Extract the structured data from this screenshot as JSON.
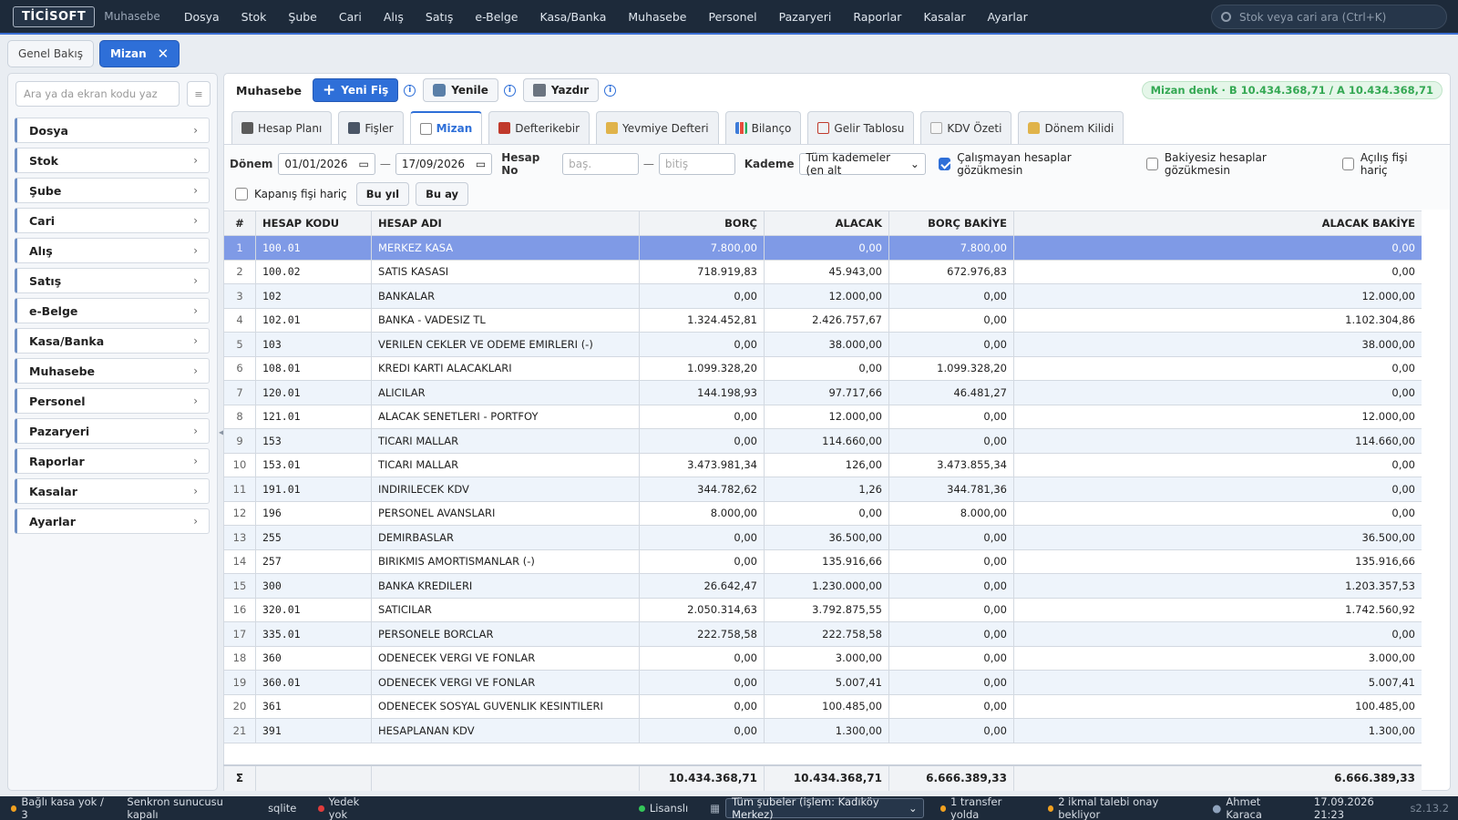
{
  "app": {
    "logo": "TİCİSOFT",
    "module": "Muhasebe"
  },
  "topmenu": [
    "Dosya",
    "Stok",
    "Şube",
    "Cari",
    "Alış",
    "Satış",
    "e-Belge",
    "Kasa/Banka",
    "Muhasebe",
    "Personel",
    "Pazaryeri",
    "Raporlar",
    "Kasalar",
    "Ayarlar"
  ],
  "global_search": {
    "placeholder": "Stok veya cari ara (Ctrl+K)"
  },
  "tabs": [
    {
      "label": "Genel Bakış",
      "active": false
    },
    {
      "label": "Mizan",
      "active": true,
      "close": "✕"
    }
  ],
  "sidebar": {
    "search_placeholder": "Ara ya da ekran kodu yaz",
    "button": "≡",
    "items": [
      "Dosya",
      "Stok",
      "Şube",
      "Cari",
      "Alış",
      "Satış",
      "e-Belge",
      "Kasa/Banka",
      "Muhasebe",
      "Personel",
      "Pazaryeri",
      "Raporlar",
      "Kasalar",
      "Ayarlar"
    ]
  },
  "toolbar": {
    "crumb": "Muhasebe",
    "new_label": "Yeni Fiş",
    "refresh_label": "Yenile",
    "print_label": "Yazdır",
    "info": "i",
    "status": "Mizan denk · B 10.434.368,71 / A 10.434.368,71"
  },
  "subtabs": [
    "Hesap Planı",
    "Fişler",
    "Mizan",
    "Defterikebir",
    "Yevmiye Defteri",
    "Bilanço",
    "Gelir Tablosu",
    "KDV Özeti",
    "Dönem Kilidi"
  ],
  "filters": {
    "period_label": "Dönem",
    "date_from": "01/01/2026",
    "date_to": "17/09/2026",
    "dash": "—",
    "account_label": "Hesap No",
    "acc_from_ph": "baş.",
    "acc_to_ph": "bitiş",
    "level_label": "Kademe",
    "level_value": "Tüm kademeler (en alt",
    "cb1": "Çalışmayan hesaplar gözükmesin",
    "cb2": "Bakiyesiz hesaplar gözükmesin",
    "cb3": "Açılış fişi hariç",
    "cb4": "Kapanış fişi hariç",
    "this_year": "Bu yıl",
    "this_month": "Bu ay"
  },
  "table": {
    "headers": [
      "#",
      "HESAP KODU",
      "HESAP ADI",
      "BORÇ",
      "ALACAK",
      "BORÇ BAKİYE",
      "ALACAK BAKİYE"
    ],
    "rows": [
      [
        "1",
        "100.01",
        "MERKEZ KASA",
        "7.800,00",
        "0,00",
        "7.800,00",
        "0,00"
      ],
      [
        "2",
        "100.02",
        "SATIS KASASI",
        "718.919,83",
        "45.943,00",
        "672.976,83",
        "0,00"
      ],
      [
        "3",
        "102",
        "BANKALAR",
        "0,00",
        "12.000,00",
        "0,00",
        "12.000,00"
      ],
      [
        "4",
        "102.01",
        "BANKA - VADESIZ TL",
        "1.324.452,81",
        "2.426.757,67",
        "0,00",
        "1.102.304,86"
      ],
      [
        "5",
        "103",
        "VERILEN CEKLER VE ODEME EMIRLERI (-)",
        "0,00",
        "38.000,00",
        "0,00",
        "38.000,00"
      ],
      [
        "6",
        "108.01",
        "KREDI KARTI ALACAKLARI",
        "1.099.328,20",
        "0,00",
        "1.099.328,20",
        "0,00"
      ],
      [
        "7",
        "120.01",
        "ALICILAR",
        "144.198,93",
        "97.717,66",
        "46.481,27",
        "0,00"
      ],
      [
        "8",
        "121.01",
        "ALACAK SENETLERI - PORTFOY",
        "0,00",
        "12.000,00",
        "0,00",
        "12.000,00"
      ],
      [
        "9",
        "153",
        "TICARI MALLAR",
        "0,00",
        "114.660,00",
        "0,00",
        "114.660,00"
      ],
      [
        "10",
        "153.01",
        "TICARI MALLAR",
        "3.473.981,34",
        "126,00",
        "3.473.855,34",
        "0,00"
      ],
      [
        "11",
        "191.01",
        "INDIRILECEK KDV",
        "344.782,62",
        "1,26",
        "344.781,36",
        "0,00"
      ],
      [
        "12",
        "196",
        "PERSONEL AVANSLARI",
        "8.000,00",
        "0,00",
        "8.000,00",
        "0,00"
      ],
      [
        "13",
        "255",
        "DEMIRBASLAR",
        "0,00",
        "36.500,00",
        "0,00",
        "36.500,00"
      ],
      [
        "14",
        "257",
        "BIRIKMIS AMORTISMANLAR (-)",
        "0,00",
        "135.916,66",
        "0,00",
        "135.916,66"
      ],
      [
        "15",
        "300",
        "BANKA KREDILERI",
        "26.642,47",
        "1.230.000,00",
        "0,00",
        "1.203.357,53"
      ],
      [
        "16",
        "320.01",
        "SATICILAR",
        "2.050.314,63",
        "3.792.875,55",
        "0,00",
        "1.742.560,92"
      ],
      [
        "17",
        "335.01",
        "PERSONELE BORCLAR",
        "222.758,58",
        "222.758,58",
        "0,00",
        "0,00"
      ],
      [
        "18",
        "360",
        "ODENECEK VERGI VE FONLAR",
        "0,00",
        "3.000,00",
        "0,00",
        "3.000,00"
      ],
      [
        "19",
        "360.01",
        "ODENECEK VERGI VE FONLAR",
        "0,00",
        "5.007,41",
        "0,00",
        "5.007,41"
      ],
      [
        "20",
        "361",
        "ODENECEK SOSYAL GUVENLIK KESINTILERI",
        "0,00",
        "100.485,00",
        "0,00",
        "100.485,00"
      ],
      [
        "21",
        "391",
        "HESAPLANAN KDV",
        "0,00",
        "1.300,00",
        "0,00",
        "1.300,00"
      ]
    ],
    "totals": [
      "Σ",
      "",
      "",
      "10.434.368,71",
      "10.434.368,71",
      "6.666.389,33",
      "6.666.389,33"
    ]
  },
  "footer": {
    "cash": "Bağlı kasa yok / 3",
    "sync": "Senkron sunucusu kapalı",
    "db": "sqlite",
    "backup": "Yedek yok",
    "license": "Lisanslı",
    "branch": "Tüm şubeler (işlem: Kadıköy Merkez)",
    "transfer": "1 transfer yolda",
    "supply": "2 ikmal talebi onay bekliyor",
    "user": "Ahmet Karaca",
    "datetime": "17.09.2026 21:23",
    "version": "s2.13.2"
  }
}
